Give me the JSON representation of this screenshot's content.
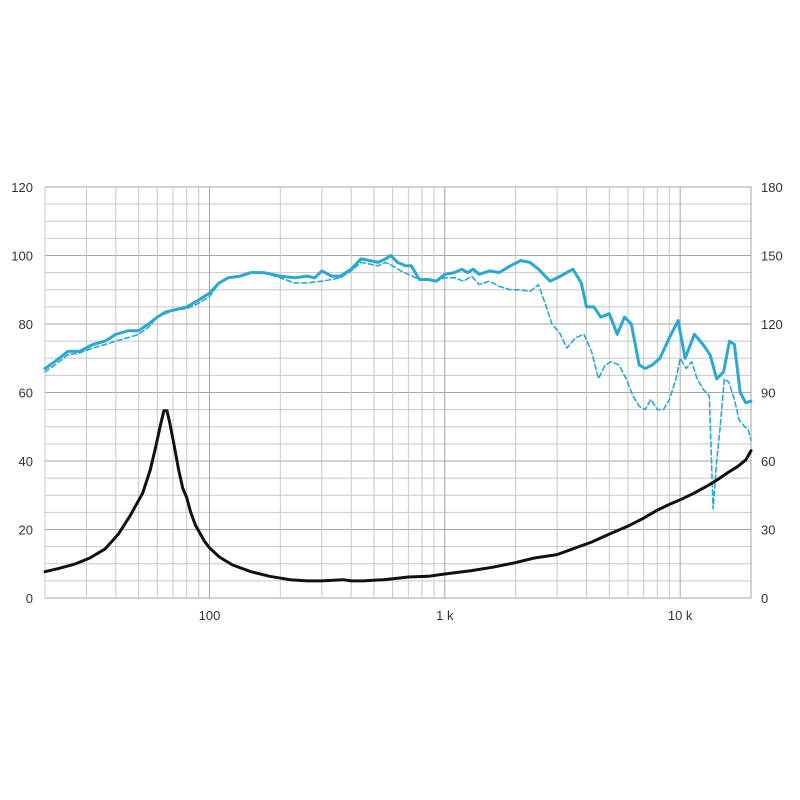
{
  "chart_data": {
    "type": "line",
    "title": "",
    "xlabel": "",
    "ylabel": "",
    "y2label": "",
    "x_scale": "log",
    "xlim": [
      20,
      20000
    ],
    "ylim": [
      0,
      120
    ],
    "y2lim": [
      0,
      180
    ],
    "grid": true,
    "x_ticks": [
      {
        "value": 100,
        "label": "100"
      },
      {
        "value": 1000,
        "label": "1 k"
      },
      {
        "value": 10000,
        "label": "10 k"
      }
    ],
    "y_ticks": [
      "0",
      "20",
      "40",
      "60",
      "80",
      "100",
      "120"
    ],
    "y2_ticks": [
      "0",
      "30",
      "60",
      "90",
      "120",
      "150",
      "180"
    ],
    "series": [
      {
        "style": "solid",
        "color": "#2aa8d2",
        "axis": "left",
        "points": [
          [
            20,
            67
          ],
          [
            22,
            69
          ],
          [
            25,
            72
          ],
          [
            28,
            72
          ],
          [
            32,
            74
          ],
          [
            36,
            75
          ],
          [
            40,
            77
          ],
          [
            45,
            78
          ],
          [
            50,
            78
          ],
          [
            55,
            80
          ],
          [
            60,
            82
          ],
          [
            65,
            83.5
          ],
          [
            70,
            84
          ],
          [
            80,
            85
          ],
          [
            90,
            87
          ],
          [
            100,
            89
          ],
          [
            110,
            92
          ],
          [
            120,
            93.5
          ],
          [
            135,
            94
          ],
          [
            150,
            95
          ],
          [
            170,
            95
          ],
          [
            200,
            94
          ],
          [
            230,
            93.5
          ],
          [
            260,
            94
          ],
          [
            280,
            93.5
          ],
          [
            300,
            95.5
          ],
          [
            330,
            94
          ],
          [
            360,
            94
          ],
          [
            400,
            96
          ],
          [
            440,
            99
          ],
          [
            480,
            98.5
          ],
          [
            520,
            98
          ],
          [
            560,
            99
          ],
          [
            590,
            100
          ],
          [
            630,
            98
          ],
          [
            680,
            97
          ],
          [
            720,
            97
          ],
          [
            780,
            93
          ],
          [
            850,
            93
          ],
          [
            920,
            92.5
          ],
          [
            1000,
            94.5
          ],
          [
            1100,
            95
          ],
          [
            1180,
            96
          ],
          [
            1250,
            95
          ],
          [
            1320,
            96
          ],
          [
            1400,
            94.5
          ],
          [
            1550,
            95.5
          ],
          [
            1700,
            95
          ],
          [
            1900,
            97
          ],
          [
            2100,
            98.5
          ],
          [
            2300,
            98
          ],
          [
            2500,
            96
          ],
          [
            2800,
            92.5
          ],
          [
            3100,
            94
          ],
          [
            3500,
            96
          ],
          [
            3800,
            92
          ],
          [
            4000,
            85
          ],
          [
            4300,
            85
          ],
          [
            4600,
            82
          ],
          [
            5000,
            83
          ],
          [
            5400,
            77
          ],
          [
            5800,
            82
          ],
          [
            6200,
            80
          ],
          [
            6700,
            68
          ],
          [
            7100,
            67
          ],
          [
            7600,
            68
          ],
          [
            8200,
            70
          ],
          [
            9000,
            76
          ],
          [
            9800,
            81
          ],
          [
            10500,
            70
          ],
          [
            11500,
            77
          ],
          [
            12500,
            74
          ],
          [
            13400,
            71
          ],
          [
            14300,
            64
          ],
          [
            15300,
            66
          ],
          [
            16200,
            75
          ],
          [
            17000,
            74
          ],
          [
            18000,
            60
          ],
          [
            19000,
            57
          ],
          [
            20000,
            57.5
          ]
        ]
      },
      {
        "style": "dashed",
        "color": "#2aa8d2",
        "axis": "left",
        "points": [
          [
            20,
            66
          ],
          [
            22,
            68
          ],
          [
            25,
            71
          ],
          [
            28,
            71.5
          ],
          [
            32,
            73
          ],
          [
            36,
            74
          ],
          [
            40,
            75
          ],
          [
            45,
            76
          ],
          [
            50,
            77
          ],
          [
            55,
            79
          ],
          [
            60,
            82
          ],
          [
            65,
            83
          ],
          [
            70,
            84
          ],
          [
            80,
            84.5
          ],
          [
            90,
            86
          ],
          [
            100,
            88
          ],
          [
            110,
            92
          ],
          [
            120,
            93.5
          ],
          [
            135,
            94
          ],
          [
            150,
            95
          ],
          [
            170,
            95
          ],
          [
            200,
            93.5
          ],
          [
            230,
            92
          ],
          [
            260,
            92
          ],
          [
            300,
            92.5
          ],
          [
            330,
            93
          ],
          [
            360,
            93.5
          ],
          [
            400,
            95.5
          ],
          [
            440,
            98
          ],
          [
            480,
            97.5
          ],
          [
            520,
            97
          ],
          [
            560,
            98
          ],
          [
            600,
            97
          ],
          [
            650,
            95.5
          ],
          [
            700,
            94.5
          ],
          [
            780,
            93
          ],
          [
            850,
            93
          ],
          [
            920,
            92.5
          ],
          [
            1000,
            93.5
          ],
          [
            1100,
            93.5
          ],
          [
            1200,
            92.5
          ],
          [
            1300,
            94
          ],
          [
            1400,
            91.5
          ],
          [
            1550,
            92.5
          ],
          [
            1700,
            91
          ],
          [
            1900,
            90
          ],
          [
            2100,
            90
          ],
          [
            2300,
            89.5
          ],
          [
            2500,
            91.5
          ],
          [
            2700,
            85
          ],
          [
            2850,
            80
          ],
          [
            3100,
            77
          ],
          [
            3300,
            73
          ],
          [
            3600,
            76
          ],
          [
            3900,
            77
          ],
          [
            4200,
            72
          ],
          [
            4500,
            64
          ],
          [
            4800,
            68
          ],
          [
            5100,
            69
          ],
          [
            5500,
            68
          ],
          [
            5900,
            64
          ],
          [
            6300,
            59
          ],
          [
            6700,
            56
          ],
          [
            7100,
            55
          ],
          [
            7500,
            58
          ],
          [
            8000,
            55
          ],
          [
            8500,
            55
          ],
          [
            9000,
            58
          ],
          [
            9600,
            64
          ],
          [
            10000,
            70
          ],
          [
            10600,
            67
          ],
          [
            11200,
            69
          ],
          [
            11800,
            64
          ],
          [
            12500,
            61
          ],
          [
            13300,
            59
          ],
          [
            13800,
            26
          ],
          [
            14300,
            40
          ],
          [
            14800,
            50
          ],
          [
            15400,
            64
          ],
          [
            16100,
            63
          ],
          [
            17000,
            58
          ],
          [
            17800,
            52
          ],
          [
            18800,
            50
          ],
          [
            19500,
            49
          ],
          [
            20000,
            46
          ]
        ]
      },
      {
        "style": "solid",
        "color": "#111111",
        "axis": "right",
        "points": [
          [
            20,
            11.5
          ],
          [
            23,
            13
          ],
          [
            27,
            15
          ],
          [
            31,
            17.5
          ],
          [
            36,
            21.5
          ],
          [
            41,
            28
          ],
          [
            46,
            36
          ],
          [
            52,
            46
          ],
          [
            56,
            56
          ],
          [
            59,
            66
          ],
          [
            62,
            76
          ],
          [
            64,
            82
          ],
          [
            66,
            82
          ],
          [
            68,
            76
          ],
          [
            71,
            66
          ],
          [
            74,
            56
          ],
          [
            77,
            48
          ],
          [
            80,
            44
          ],
          [
            83,
            38
          ],
          [
            87,
            32
          ],
          [
            95,
            25
          ],
          [
            100,
            22
          ],
          [
            110,
            18
          ],
          [
            125,
            14.5
          ],
          [
            150,
            11.5
          ],
          [
            180,
            9.5
          ],
          [
            220,
            8
          ],
          [
            260,
            7.5
          ],
          [
            300,
            7.5
          ],
          [
            370,
            8
          ],
          [
            400,
            7.5
          ],
          [
            450,
            7.5
          ],
          [
            550,
            8
          ],
          [
            650,
            8.8
          ],
          [
            700,
            9.2
          ],
          [
            850,
            9.5
          ],
          [
            1000,
            10.5
          ],
          [
            1300,
            12
          ],
          [
            1600,
            13.5
          ],
          [
            2000,
            15.5
          ],
          [
            2400,
            17.5
          ],
          [
            3000,
            19
          ],
          [
            3600,
            22
          ],
          [
            4200,
            24.5
          ],
          [
            5000,
            28
          ],
          [
            6000,
            31.5
          ],
          [
            7000,
            35
          ],
          [
            8000,
            38.5
          ],
          [
            9000,
            41
          ],
          [
            10000,
            43
          ],
          [
            11500,
            46
          ],
          [
            13000,
            49
          ],
          [
            14500,
            52
          ],
          [
            16000,
            55
          ],
          [
            17500,
            57.5
          ],
          [
            19000,
            60.5
          ],
          [
            20000,
            64.5
          ]
        ]
      }
    ]
  }
}
